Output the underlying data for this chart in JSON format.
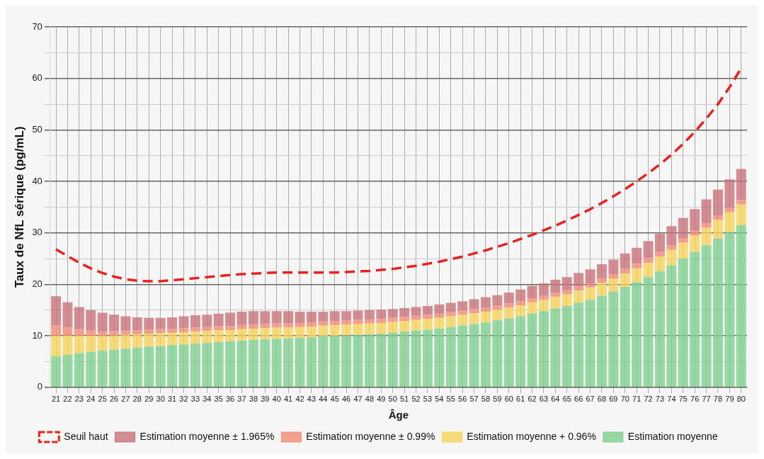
{
  "chart_data": {
    "type": "bar",
    "stacked": true,
    "xlabel": "Âge",
    "ylabel": "Taux de NfL sérique (pg/mL)",
    "categories": [
      "21",
      "22",
      "23",
      "24",
      "25",
      "26",
      "27",
      "28",
      "29",
      "30",
      "31",
      "32",
      "33",
      "34",
      "35",
      "36",
      "37",
      "38",
      "39",
      "40",
      "41",
      "42",
      "43",
      "44",
      "45",
      "46",
      "47",
      "48",
      "49",
      "50",
      "51",
      "52",
      "53",
      "54",
      "55",
      "56",
      "57",
      "58",
      "59",
      "60",
      "61",
      "62",
      "63",
      "64",
      "65",
      "66",
      "67",
      "68",
      "69",
      "70",
      "71",
      "72",
      "73",
      "74",
      "75",
      "76",
      "77",
      "78",
      "79",
      "80"
    ],
    "ylim": [
      0,
      70
    ],
    "yticks": [
      0,
      {
        "value": 5,
        "label": null
      },
      10,
      {
        "value": 15,
        "label": null
      },
      20,
      {
        "value": 25,
        "label": null
      },
      30,
      {
        "value": 35,
        "label": null
      },
      40,
      {
        "value": 45,
        "label": null
      },
      50,
      {
        "value": 55,
        "label": null
      },
      60,
      {
        "value": 65,
        "label": null
      },
      70
    ],
    "grid": true,
    "legend": "bottom",
    "series": [
      {
        "name": "Estimation moyenne",
        "color": "#7fd08f",
        "values": [
          6.0,
          6.3,
          6.6,
          6.9,
          7.1,
          7.3,
          7.5,
          7.7,
          7.9,
          8.0,
          8.2,
          8.3,
          8.5,
          8.6,
          8.8,
          8.9,
          9.1,
          9.2,
          9.3,
          9.4,
          9.5,
          9.6,
          9.7,
          9.9,
          10.0,
          10.1,
          10.2,
          10.3,
          10.4,
          10.6,
          10.8,
          11.0,
          11.2,
          11.4,
          11.7,
          12.0,
          12.3,
          12.6,
          13.0,
          13.4,
          13.8,
          14.3,
          14.8,
          15.3,
          15.8,
          16.4,
          17.0,
          17.8,
          18.6,
          19.5,
          20.4,
          21.4,
          22.5,
          23.7,
          25.0,
          26.3,
          27.6,
          28.9,
          30.2,
          31.5
        ]
      },
      {
        "name": "Estimation moyenne + 0.96%",
        "color": "#f8d35a",
        "values": [
          4.0,
          3.7,
          3.4,
          3.1,
          2.9,
          2.8,
          2.7,
          2.6,
          2.5,
          2.5,
          2.4,
          2.4,
          2.3,
          2.3,
          2.3,
          2.2,
          2.2,
          2.2,
          2.2,
          2.2,
          2.1,
          2.1,
          2.1,
          2.1,
          2.1,
          2.1,
          2.1,
          2.1,
          2.1,
          2.1,
          2.1,
          2.1,
          2.1,
          2.1,
          2.1,
          2.1,
          2.1,
          2.1,
          2.1,
          2.1,
          2.1,
          2.2,
          2.2,
          2.3,
          2.3,
          2.4,
          2.4,
          2.5,
          2.5,
          2.6,
          2.7,
          2.8,
          2.9,
          3.0,
          3.1,
          3.2,
          3.4,
          3.6,
          3.8,
          4.0
        ]
      },
      {
        "name": "Estimation moyenne ± 0.99%",
        "color": "#f28b74",
        "values": [
          2.0,
          1.6,
          1.3,
          1.0,
          0.8,
          0.8,
          0.8,
          0.8,
          0.8,
          0.8,
          0.8,
          0.8,
          0.8,
          0.8,
          0.8,
          0.8,
          0.8,
          0.8,
          0.8,
          0.8,
          0.8,
          0.8,
          0.8,
          0.8,
          0.8,
          0.8,
          0.8,
          0.8,
          0.8,
          0.8,
          0.8,
          0.8,
          0.8,
          0.8,
          0.8,
          0.8,
          0.8,
          0.8,
          0.8,
          0.8,
          0.8,
          0.8,
          0.8,
          0.8,
          0.8,
          0.8,
          0.8,
          0.8,
          0.8,
          0.9,
          0.9,
          0.9,
          0.9,
          0.9,
          0.9,
          0.9,
          0.9,
          0.9,
          0.9,
          0.9
        ]
      },
      {
        "name": "Estimation moyenne ± 1.965%",
        "color": "#c9737b",
        "values": [
          5.7,
          4.9,
          4.3,
          4.0,
          3.7,
          3.2,
          2.8,
          2.5,
          2.3,
          2.2,
          2.2,
          2.3,
          2.4,
          2.4,
          2.4,
          2.6,
          2.6,
          2.6,
          2.5,
          2.4,
          2.4,
          2.2,
          2.1,
          1.9,
          1.9,
          1.8,
          1.8,
          1.8,
          1.8,
          1.7,
          1.7,
          1.7,
          1.7,
          1.8,
          1.8,
          1.8,
          1.9,
          2.0,
          2.0,
          2.1,
          2.3,
          2.4,
          2.4,
          2.5,
          2.5,
          2.6,
          2.7,
          2.8,
          2.9,
          3.0,
          3.1,
          3.3,
          3.5,
          3.7,
          3.9,
          4.2,
          4.6,
          5.0,
          5.5,
          6.0
        ]
      },
      {
        "name": "Seuil haut",
        "type": "line",
        "color": "#e8231f",
        "line_style": "dashed",
        "marker": "none",
        "values": [
          26.8,
          25.5,
          24.2,
          23.1,
          22.2,
          21.5,
          21.0,
          20.7,
          20.6,
          20.6,
          20.8,
          21.0,
          21.2,
          21.4,
          21.6,
          21.8,
          22.0,
          22.1,
          22.2,
          22.3,
          22.3,
          22.3,
          22.3,
          22.3,
          22.3,
          22.4,
          22.5,
          22.6,
          22.8,
          23.0,
          23.3,
          23.6,
          24.0,
          24.4,
          24.9,
          25.4,
          26.0,
          26.6,
          27.3,
          28.0,
          28.8,
          29.6,
          30.5,
          31.4,
          32.4,
          33.5,
          34.6,
          35.8,
          37.1,
          38.5,
          40.0,
          41.6,
          43.3,
          45.2,
          47.3,
          49.6,
          52.2,
          55.0,
          58.3,
          62.0
        ]
      }
    ]
  }
}
